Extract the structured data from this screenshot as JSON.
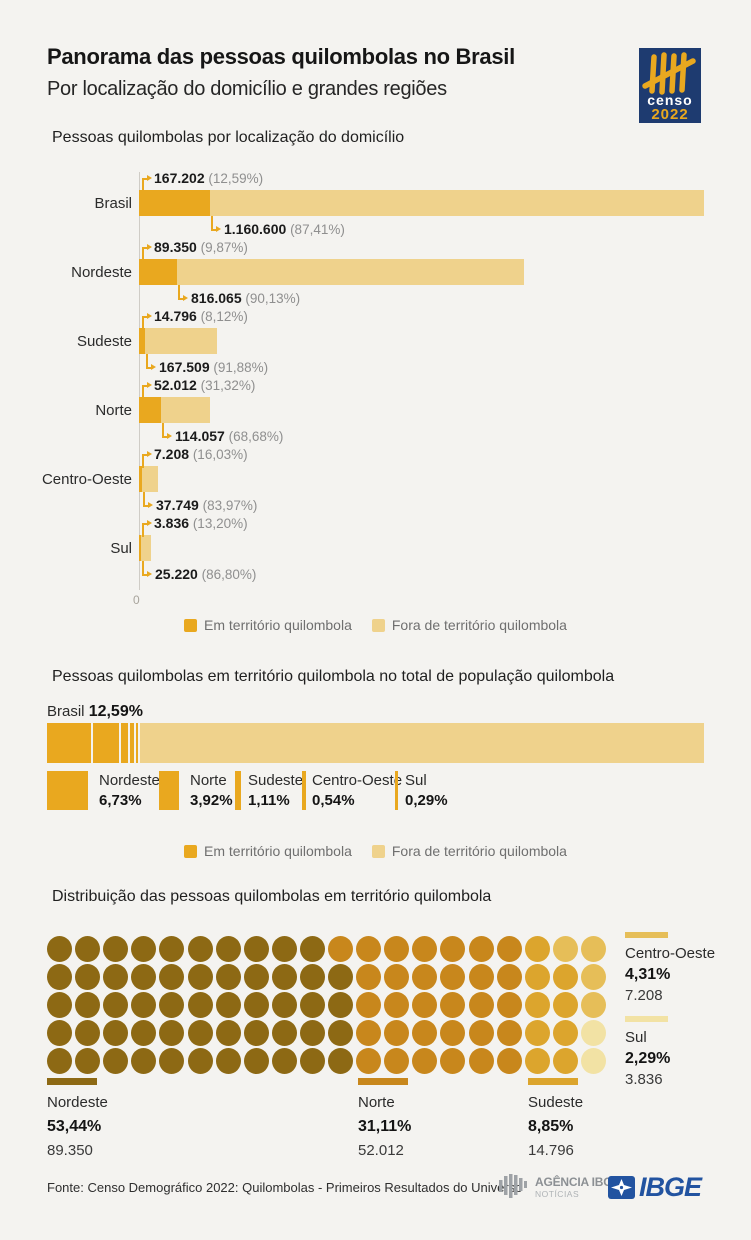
{
  "page": {
    "title": "Panorama das pessoas quilombolas no Brasil",
    "subtitle": "Por localização do domicílio e grandes regiões"
  },
  "censo_logo": {
    "line1": "censo",
    "line2": "2022"
  },
  "legend": {
    "em": "Em território quilombola",
    "fora": "Fora de território quilombola"
  },
  "colors": {
    "em": "#E9A81F",
    "fora": "#EFD28C",
    "censo_navy": "#1E3B70",
    "ibge_blue": "#2253A0"
  },
  "chart_data": [
    {
      "type": "bar",
      "orientation": "horizontal",
      "stacked": true,
      "title": "Pessoas quilombolas por localização do domicílio",
      "categories": [
        "Brasil",
        "Nordeste",
        "Sudeste",
        "Norte",
        "Centro-Oeste",
        "Sul"
      ],
      "series": [
        {
          "name": "Em território quilombola",
          "color": "#E9A81F",
          "values": [
            167202,
            89350,
            14796,
            52012,
            7208,
            3836
          ],
          "value_labels": [
            "167.202",
            "89.350",
            "14.796",
            "52.012",
            "7.208",
            "3.836"
          ],
          "pct_labels": [
            "(12,59%)",
            "(9,87%)",
            "(8,12%)",
            "(31,32%)",
            "(16,03%)",
            "(13,20%)"
          ]
        },
        {
          "name": "Fora de território quilombola",
          "color": "#EFD28C",
          "values": [
            1160600,
            816065,
            167509,
            114057,
            37749,
            25220
          ],
          "value_labels": [
            "1.160.600",
            "816.065",
            "167.509",
            "114.057",
            "37.749",
            "25.220"
          ],
          "pct_labels": [
            "(87,41%)",
            "(90,13%)",
            "(91,88%)",
            "(68,68%)",
            "(83,97%)",
            "(86,80%)"
          ]
        }
      ],
      "x_start_label": "0"
    },
    {
      "type": "bar",
      "stacked": true,
      "title": "Pessoas quilombolas em território quilombola no total de população quilombola",
      "total_label": {
        "name": "Brasil",
        "pct": "12,59%"
      },
      "segments": [
        {
          "name": "Nordeste",
          "value": 6.73,
          "pct_label": "6,73%"
        },
        {
          "name": "Norte",
          "value": 3.92,
          "pct_label": "3,92%"
        },
        {
          "name": "Sudeste",
          "value": 1.11,
          "pct_label": "1,11%"
        },
        {
          "name": "Centro-Oeste",
          "value": 0.54,
          "pct_label": "0,54%"
        },
        {
          "name": "Sul",
          "value": 0.29,
          "pct_label": "0,29%"
        }
      ],
      "remainder": {
        "name": "Fora de território quilombola",
        "value": 87.41
      }
    },
    {
      "type": "waffle",
      "title": "Distribuição das pessoas quilombolas em território quilombola",
      "rows": 5,
      "cols": 20,
      "grid": [
        "AAAAAAAAAABBBBBBBCDD",
        "AAAAAAAAAAABBBBBBCCD",
        "AAAAAAAAAAABBBBBBCCD",
        "AAAAAAAAAAABBBBBBCCE",
        "AAAAAAAAAAABBBBBBCCE"
      ],
      "regions": [
        {
          "code": "A",
          "name": "Nordeste",
          "pct_label": "53,44%",
          "value_label": "89.350",
          "color": "#8D6914"
        },
        {
          "code": "B",
          "name": "Norte",
          "pct_label": "31,11%",
          "value_label": "52.012",
          "color": "#C8871C"
        },
        {
          "code": "C",
          "name": "Sudeste",
          "pct_label": "8,85%",
          "value_label": "14.796",
          "color": "#DCA52D"
        },
        {
          "code": "D",
          "name": "Centro-Oeste",
          "pct_label": "4,31%",
          "value_label": "7.208",
          "color": "#E6BE58"
        },
        {
          "code": "E",
          "name": "Sul",
          "pct_label": "2,29%",
          "value_label": "3.836",
          "color": "#F2E2A4"
        }
      ]
    }
  ],
  "footer": {
    "source": "Fonte: Censo Demográfico 2022: Quilombolas - Primeiros Resultados do Universo",
    "agencia_line1": "AGÊNCIA IBGE",
    "agencia_line2": "NOTÍCIAS",
    "ibge": "IBGE"
  }
}
